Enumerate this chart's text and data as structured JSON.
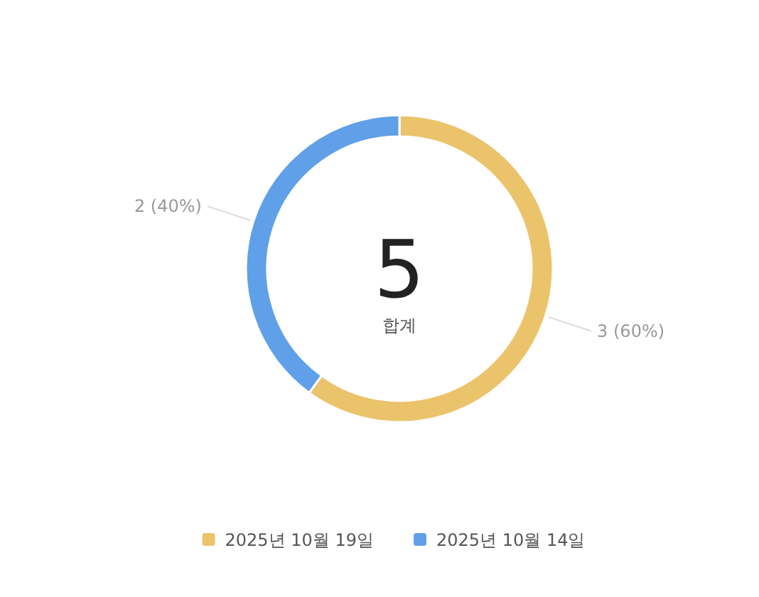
{
  "chart_data": {
    "type": "donut",
    "categories": [
      "2025년 10월 19일",
      "2025년 10월 14일"
    ],
    "values": [
      3,
      2
    ],
    "colors": [
      "#ebc36b",
      "#5fa0e8"
    ],
    "value_labels": [
      "3 (60%)",
      "2 (40%)"
    ],
    "annotations": [
      "5",
      "합계"
    ],
    "legend": "bottom"
  }
}
